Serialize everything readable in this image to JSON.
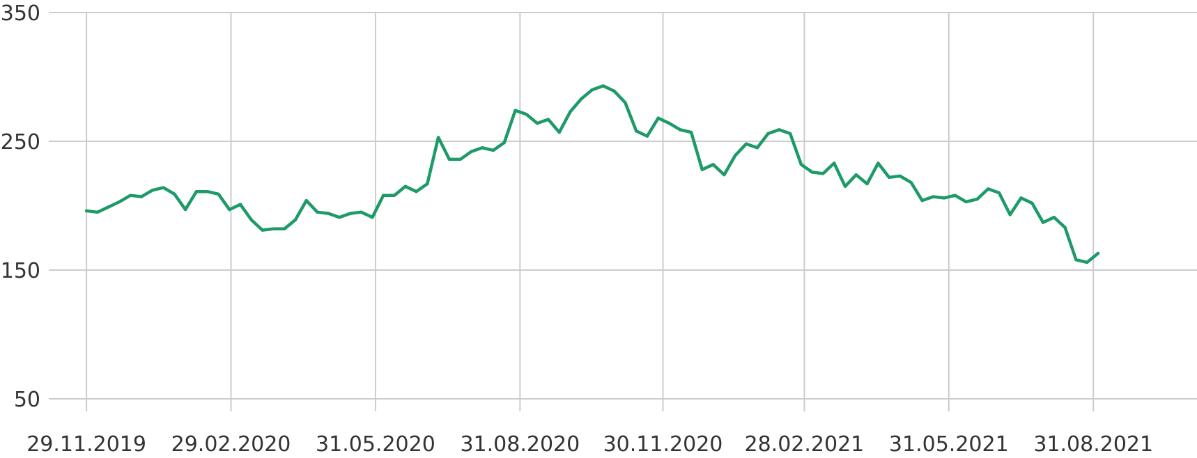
{
  "chart_data": {
    "type": "line",
    "title": "",
    "xlabel": "",
    "ylabel": "",
    "ylim": [
      50,
      350
    ],
    "yticks": [
      "350",
      "250",
      "150",
      "50"
    ],
    "ytick_values": [
      350,
      250,
      150,
      50
    ],
    "xlim": [
      "2019-11-05",
      "2021-11-05"
    ],
    "xticks": [
      "29.11.2019",
      "29.02.2020",
      "31.05.2020",
      "31.08.2020",
      "30.11.2020",
      "28.02.2021",
      "31.05.2021",
      "31.08.2021"
    ],
    "xtick_dates": [
      "2019-11-29",
      "2020-02-29",
      "2020-05-31",
      "2020-08-31",
      "2020-11-30",
      "2021-02-28",
      "2021-05-31",
      "2021-08-31"
    ],
    "grid": true,
    "legend": "none",
    "colors": {
      "line": "#1e9a68",
      "grid": "#cccccc",
      "text": "#333333"
    },
    "series": [
      {
        "x": [
          "2019-11-29",
          "2019-12-06",
          "2019-12-13",
          "2019-12-20",
          "2019-12-27",
          "2020-01-03",
          "2020-01-10",
          "2020-01-17",
          "2020-01-24",
          "2020-01-31",
          "2020-02-07",
          "2020-02-14",
          "2020-02-21",
          "2020-02-28",
          "2020-03-06",
          "2020-03-13",
          "2020-03-20",
          "2020-03-27",
          "2020-04-03",
          "2020-04-10",
          "2020-04-17",
          "2020-04-24",
          "2020-05-01",
          "2020-05-08",
          "2020-05-15",
          "2020-05-22",
          "2020-05-29",
          "2020-06-05",
          "2020-06-12",
          "2020-06-19",
          "2020-06-26",
          "2020-07-03",
          "2020-07-10",
          "2020-07-17",
          "2020-07-24",
          "2020-07-31",
          "2020-08-07",
          "2020-08-14",
          "2020-08-21",
          "2020-08-28",
          "2020-09-04",
          "2020-09-11",
          "2020-09-18",
          "2020-09-25",
          "2020-10-02",
          "2020-10-09",
          "2020-10-16",
          "2020-10-23",
          "2020-10-30",
          "2020-11-06",
          "2020-11-13",
          "2020-11-20",
          "2020-11-27",
          "2020-12-04",
          "2020-12-11",
          "2020-12-18",
          "2020-12-25",
          "2021-01-01",
          "2021-01-08",
          "2021-01-15",
          "2021-01-22",
          "2021-01-29",
          "2021-02-05",
          "2021-02-12",
          "2021-02-19",
          "2021-02-26",
          "2021-03-05",
          "2021-03-12",
          "2021-03-19",
          "2021-03-26",
          "2021-04-02",
          "2021-04-09",
          "2021-04-16",
          "2021-04-23",
          "2021-04-30",
          "2021-05-07",
          "2021-05-14",
          "2021-05-21",
          "2021-05-28",
          "2021-06-04",
          "2021-06-11",
          "2021-06-18",
          "2021-06-25",
          "2021-07-02",
          "2021-07-09",
          "2021-07-16",
          "2021-07-23",
          "2021-07-30",
          "2021-08-06",
          "2021-08-13",
          "2021-08-20",
          "2021-08-27",
          "2021-09-03"
        ],
        "values": [
          196,
          195,
          199,
          203,
          208,
          207,
          212,
          214,
          209,
          197,
          211,
          211,
          209,
          197,
          201,
          189,
          181,
          182,
          182,
          189,
          204,
          195,
          194,
          191,
          194,
          195,
          191,
          208,
          208,
          215,
          211,
          217,
          253,
          236,
          236,
          242,
          245,
          243,
          249,
          274,
          271,
          264,
          267,
          257,
          273,
          283,
          290,
          293,
          289,
          280,
          258,
          254,
          268,
          264,
          259,
          257,
          228,
          232,
          224,
          239,
          248,
          245,
          256,
          259,
          256,
          232,
          226,
          225,
          233,
          215,
          224,
          217,
          233,
          222,
          223,
          218,
          204,
          207,
          206,
          208,
          203,
          205,
          213,
          210,
          193,
          206,
          202,
          187,
          191,
          183,
          158,
          156,
          163
        ]
      }
    ]
  }
}
